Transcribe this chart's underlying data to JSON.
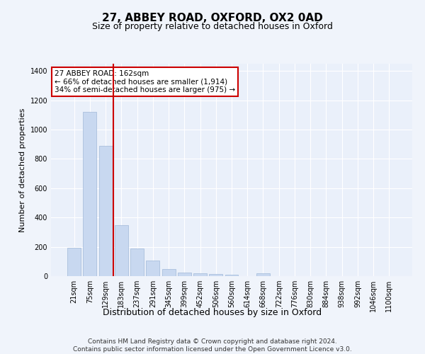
{
  "title1": "27, ABBEY ROAD, OXFORD, OX2 0AD",
  "title2": "Size of property relative to detached houses in Oxford",
  "xlabel": "Distribution of detached houses by size in Oxford",
  "ylabel": "Number of detached properties",
  "categories": [
    "21sqm",
    "75sqm",
    "129sqm",
    "183sqm",
    "237sqm",
    "291sqm",
    "345sqm",
    "399sqm",
    "452sqm",
    "506sqm",
    "560sqm",
    "614sqm",
    "668sqm",
    "722sqm",
    "776sqm",
    "830sqm",
    "884sqm",
    "938sqm",
    "992sqm",
    "1046sqm",
    "1100sqm"
  ],
  "values": [
    195,
    1120,
    890,
    350,
    190,
    105,
    48,
    25,
    18,
    15,
    10,
    0,
    20,
    0,
    0,
    0,
    0,
    0,
    0,
    0,
    0
  ],
  "bar_color": "#c8d8f0",
  "bar_edgecolor": "#a0b8d8",
  "vline_color": "#cc0000",
  "annotation_text": "27 ABBEY ROAD: 162sqm\n← 66% of detached houses are smaller (1,914)\n34% of semi-detached houses are larger (975) →",
  "annotation_box_color": "white",
  "annotation_box_edgecolor": "#cc0000",
  "ylim": [
    0,
    1450
  ],
  "yticks": [
    0,
    200,
    400,
    600,
    800,
    1000,
    1200,
    1400
  ],
  "footer": "Contains HM Land Registry data © Crown copyright and database right 2024.\nContains public sector information licensed under the Open Government Licence v3.0.",
  "bg_color": "#f0f4fb",
  "plot_bg_color": "#eaf0fa",
  "title1_fontsize": 11,
  "title2_fontsize": 9,
  "ylabel_fontsize": 8,
  "xlabel_fontsize": 9,
  "tick_fontsize": 7,
  "footer_fontsize": 6.5
}
